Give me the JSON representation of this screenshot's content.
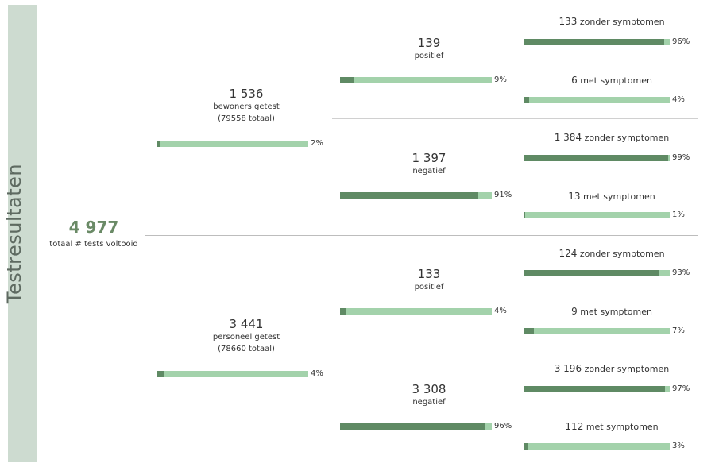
{
  "title": "Testresultaten",
  "total": {
    "value": "4 977",
    "label": "totaal # tests voltooid"
  },
  "colors": {
    "bar_bg": "#a3d2ab",
    "bar_fill": "#5f8a64",
    "accent": "#6a8a66",
    "sidebar": "#cddbd0"
  },
  "chart_data": {
    "type": "bar",
    "groups": [
      {
        "value": "1 536",
        "label": "bewoners getest",
        "sublabel": "(79558 totaal)",
        "pct": 2,
        "pct_label": "2%",
        "children": [
          {
            "value": "139",
            "label": "positief",
            "pct": 9,
            "pct_label": "9%",
            "children": [
              {
                "value": "133",
                "label": "zonder symptomen",
                "pct": 96,
                "pct_label": "96%"
              },
              {
                "value": "6",
                "label": "met symptomen",
                "pct": 4,
                "pct_label": "4%"
              }
            ]
          },
          {
            "value": "1 397",
            "label": "negatief",
            "pct": 91,
            "pct_label": "91%",
            "children": [
              {
                "value": "1 384",
                "label": "zonder symptomen",
                "pct": 99,
                "pct_label": "99%"
              },
              {
                "value": "13",
                "label": "met symptomen",
                "pct": 1,
                "pct_label": "1%"
              }
            ]
          }
        ]
      },
      {
        "value": "3 441",
        "label": "personeel getest",
        "sublabel": "(78660 totaal)",
        "pct": 4,
        "pct_label": "4%",
        "children": [
          {
            "value": "133",
            "label": "positief",
            "pct": 4,
            "pct_label": "4%",
            "children": [
              {
                "value": "124",
                "label": "zonder symptomen",
                "pct": 93,
                "pct_label": "93%"
              },
              {
                "value": "9",
                "label": "met symptomen",
                "pct": 7,
                "pct_label": "7%"
              }
            ]
          },
          {
            "value": "3 308",
            "label": "negatief",
            "pct": 96,
            "pct_label": "96%",
            "children": [
              {
                "value": "3 196",
                "label": "zonder symptomen",
                "pct": 97,
                "pct_label": "97%"
              },
              {
                "value": "112",
                "label": "met symptomen",
                "pct": 3,
                "pct_label": "3%"
              }
            ]
          }
        ]
      }
    ]
  }
}
